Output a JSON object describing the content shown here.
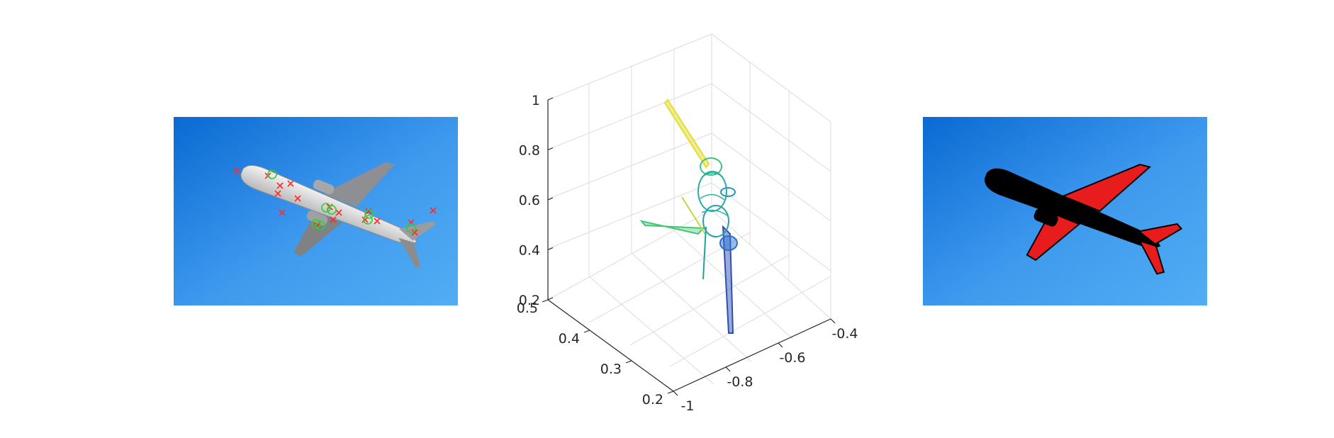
{
  "chart_data": [
    {
      "type": "image",
      "panel": "left",
      "annotations": {
        "markers": [
          "red-x",
          "green-circle"
        ],
        "marker_colors": [
          "#ff2a2a",
          "#33cc33"
        ]
      }
    },
    {
      "type": "3d-mesh",
      "panel": "center",
      "colormap": [
        "#3b4cc0",
        "#1f9ab6",
        "#33c27b",
        "#a6d63a",
        "#f3e21e"
      ],
      "grid": true,
      "axes": {
        "x": {
          "ticks": [
            -1,
            -0.8,
            -0.6,
            -0.4
          ],
          "labels": [
            "-1",
            "-0.8",
            "-0.6",
            "-0.4"
          ]
        },
        "y": {
          "ticks": [
            0.2,
            0.3,
            0.4,
            0.5
          ],
          "labels": [
            "0.2",
            "0.3",
            "0.4",
            "0.5"
          ]
        },
        "z": {
          "ticks": [
            0.2,
            0.4,
            0.6,
            0.8,
            1
          ],
          "labels": [
            "0.2",
            "0.4",
            "0.6",
            "0.8",
            "1"
          ]
        }
      }
    },
    {
      "type": "image",
      "panel": "right",
      "overlay_color": "#e81c1c"
    }
  ],
  "colors": {
    "sky_dark": "#0b6fd6",
    "sky_light": "#4aa6f0",
    "mask": "#000000",
    "axis": "#262626",
    "grid": "#dcdcdc"
  }
}
